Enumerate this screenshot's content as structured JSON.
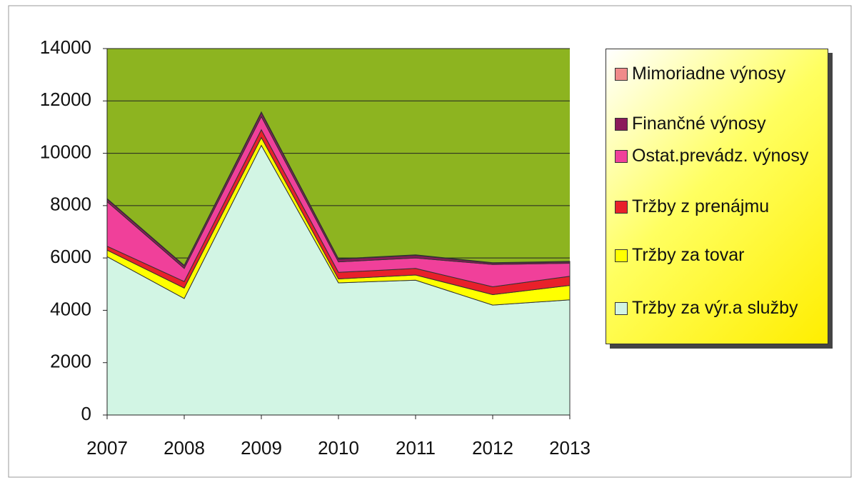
{
  "chart_data": {
    "type": "stacked_area",
    "categories": [
      "2007",
      "2008",
      "2009",
      "2010",
      "2011",
      "2012",
      "2013"
    ],
    "series": [
      {
        "name": "Tržby za výr.a služby",
        "color": "#d2f5e4",
        "values": [
          6050,
          4450,
          10300,
          5050,
          5150,
          4200,
          4400
        ]
      },
      {
        "name": "Tržby za tovar",
        "color": "#ffff00",
        "values": [
          250,
          400,
          300,
          150,
          200,
          400,
          550
        ]
      },
      {
        "name": "Tržby z prenájmu",
        "color": "#e8202a",
        "values": [
          150,
          250,
          300,
          250,
          250,
          300,
          350
        ]
      },
      {
        "name": "Ostat.prevádz. výnosy",
        "color": "#f0409a",
        "values": [
          1700,
          500,
          500,
          400,
          400,
          850,
          500
        ]
      },
      {
        "name": "Finančné výnosy",
        "color": "#8b1a5a",
        "values": [
          100,
          100,
          150,
          100,
          100,
          50,
          50
        ]
      },
      {
        "name": "Mimoriadne výnosy",
        "color": "#f08a8a",
        "values": [
          20,
          20,
          30,
          20,
          20,
          20,
          20
        ]
      }
    ],
    "ylim": [
      0,
      14000
    ],
    "yticks": [
      0,
      2000,
      4000,
      6000,
      8000,
      10000,
      12000,
      14000
    ],
    "grid": true,
    "plot_background": "#8db420",
    "legend": "right"
  }
}
